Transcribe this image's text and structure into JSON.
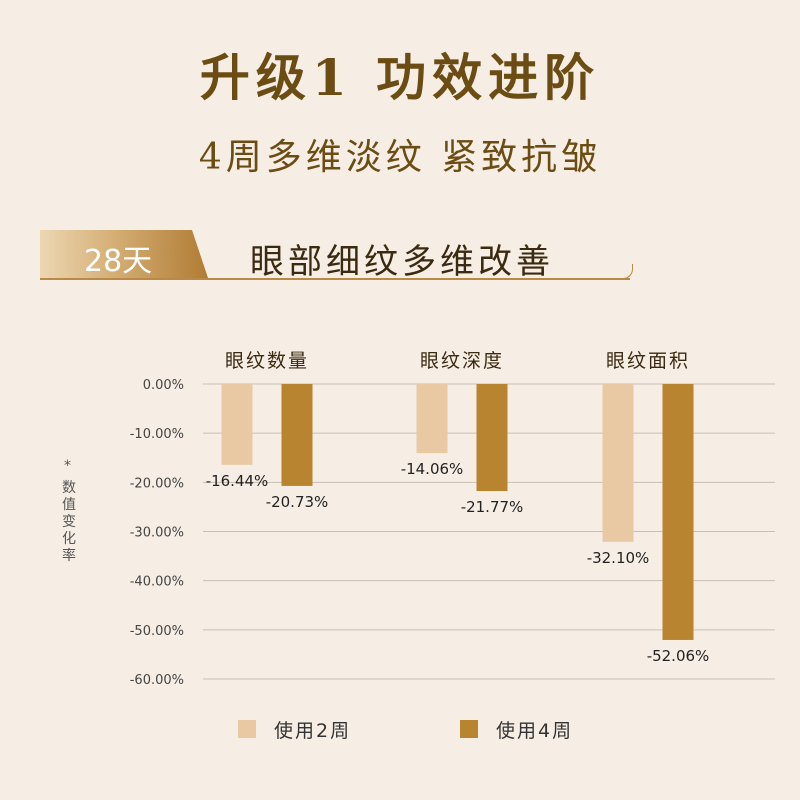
{
  "header": {
    "title": "升级1  功效进阶",
    "subtitle": "4周多维淡纹 紧致抗皱"
  },
  "section": {
    "badge": "28天",
    "title": "眼部细纹多维改善"
  },
  "colors": {
    "background": "#f6ede5",
    "series_2w": "#e8c9a3",
    "series_4w": "#b8842f",
    "title": "#6b4c12"
  },
  "chart_data": {
    "type": "bar",
    "categories": [
      "眼纹数量",
      "眼纹深度",
      "眼纹面积"
    ],
    "series": [
      {
        "name": "使用2周",
        "values": [
          -16.44,
          -14.06,
          -32.1
        ],
        "labels": [
          "-16.44%",
          "-14.06%",
          "-32.10%"
        ]
      },
      {
        "name": "使用4周",
        "values": [
          -20.73,
          -21.77,
          -52.06
        ],
        "labels": [
          "-20.73%",
          "-21.77%",
          "-52.06%"
        ]
      }
    ],
    "y_ticks": [
      "0.00%",
      "-10.00%",
      "-20.00%",
      "-30.00%",
      "-40.00%",
      "-50.00%",
      "-60.00%"
    ],
    "y_tick_values": [
      0,
      -10,
      -20,
      -30,
      -40,
      -50,
      -60
    ],
    "ylim": [
      -60,
      0
    ],
    "ylabel_star": "*",
    "ylabel": "数值变化率",
    "grid": true,
    "legend_position": "bottom"
  }
}
